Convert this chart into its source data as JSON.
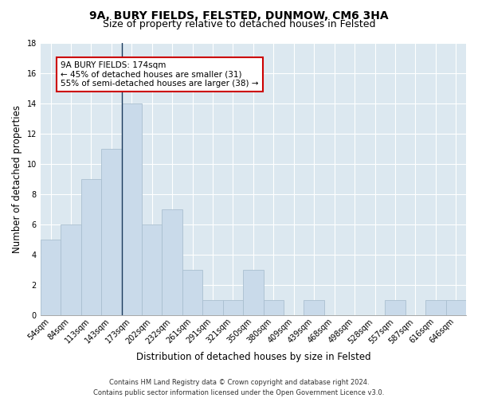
{
  "title1": "9A, BURY FIELDS, FELSTED, DUNMOW, CM6 3HA",
  "title2": "Size of property relative to detached houses in Felsted",
  "xlabel": "Distribution of detached houses by size in Felsted",
  "ylabel": "Number of detached properties",
  "categories": [
    "54sqm",
    "84sqm",
    "113sqm",
    "143sqm",
    "173sqm",
    "202sqm",
    "232sqm",
    "261sqm",
    "291sqm",
    "321sqm",
    "350sqm",
    "380sqm",
    "409sqm",
    "439sqm",
    "468sqm",
    "498sqm",
    "528sqm",
    "557sqm",
    "587sqm",
    "616sqm",
    "646sqm"
  ],
  "values": [
    5,
    6,
    9,
    11,
    14,
    6,
    7,
    3,
    1,
    1,
    3,
    1,
    0,
    1,
    0,
    0,
    0,
    1,
    0,
    1,
    1
  ],
  "bar_color": "#c9daea",
  "bar_edge_color": "#aabfd0",
  "vline_index": 4,
  "vline_color": "#1a3a5c",
  "annotation_line1": "9A BURY FIELDS: 174sqm",
  "annotation_line2": "← 45% of detached houses are smaller (31)",
  "annotation_line3": "55% of semi-detached houses are larger (38) →",
  "annotation_box_color": "#ffffff",
  "annotation_box_edge": "#cc0000",
  "ylim": [
    0,
    18
  ],
  "yticks": [
    0,
    2,
    4,
    6,
    8,
    10,
    12,
    14,
    16,
    18
  ],
  "footer": "Contains HM Land Registry data © Crown copyright and database right 2024.\nContains public sector information licensed under the Open Government Licence v3.0.",
  "fig_background": "#ffffff",
  "plot_background": "#dce8f0",
  "grid_color": "#ffffff",
  "title1_fontsize": 10,
  "title2_fontsize": 9,
  "xlabel_fontsize": 8.5,
  "ylabel_fontsize": 8.5,
  "tick_fontsize": 7,
  "annotation_fontsize": 7.5,
  "footer_fontsize": 6
}
